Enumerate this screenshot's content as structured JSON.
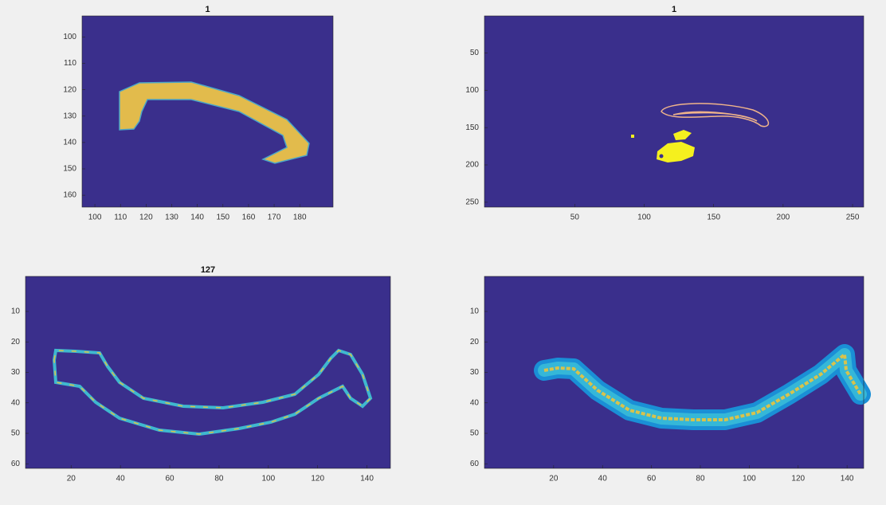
{
  "chart_data": [
    {
      "type": "image",
      "title": "1",
      "xlim": [
        95,
        193
      ],
      "ylim": [
        92,
        164.5
      ],
      "xticks": [
        100,
        110,
        120,
        130,
        140,
        150,
        160,
        170,
        180
      ],
      "yticks": [
        100,
        110,
        120,
        130,
        140,
        150,
        160
      ],
      "y_reversed": true,
      "color": "#3a2f8c"
    },
    {
      "type": "image",
      "title": "1",
      "xlim": [
        -15,
        258
      ],
      "ylim": [
        0.5,
        256.5
      ],
      "xticks": [
        50,
        100,
        150,
        200,
        250
      ],
      "yticks": [
        50,
        100,
        150,
        200,
        250
      ],
      "y_reversed": true,
      "color": "#3a2f8c"
    },
    {
      "type": "image",
      "title": "127",
      "xlim": [
        1.5,
        149.5
      ],
      "ylim": [
        -1.5,
        61.5
      ],
      "xticks": [
        20,
        40,
        60,
        80,
        100,
        120,
        140
      ],
      "yticks": [
        10,
        20,
        30,
        40,
        50,
        60
      ],
      "y_reversed": true,
      "color": "#3a2f8c"
    },
    {
      "type": "image",
      "xlim": [
        -8.3,
        146.8
      ],
      "ylim": [
        -1.5,
        61.5
      ],
      "xticks": [
        20,
        40,
        60,
        80,
        100,
        120,
        140
      ],
      "yticks": [
        10,
        20,
        30,
        40,
        50,
        60
      ],
      "y_reversed": true,
      "color": "#3a2f8c"
    }
  ]
}
